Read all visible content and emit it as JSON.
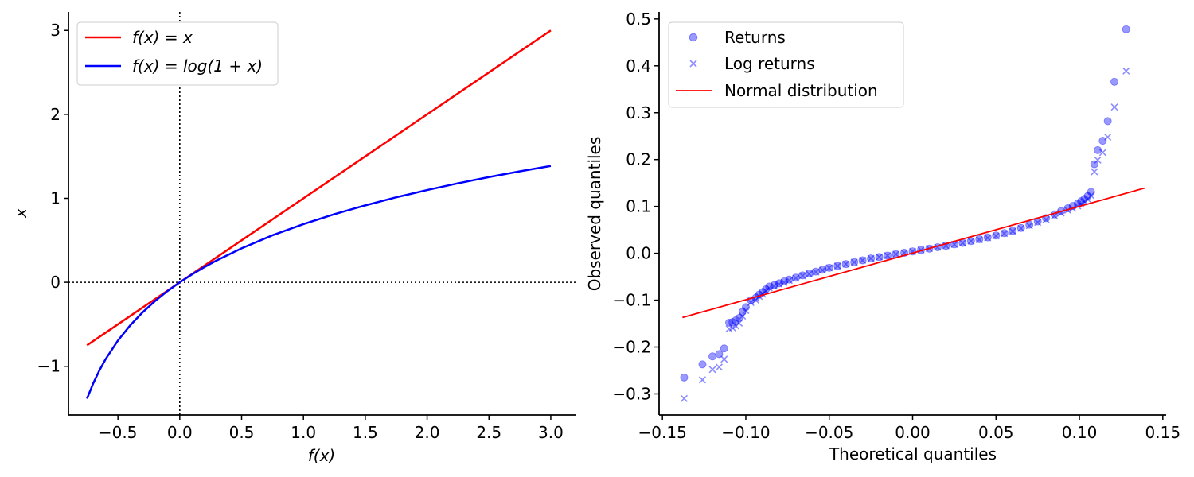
{
  "chart_data": [
    {
      "type": "line",
      "xlabel": "f(x)",
      "ylabel": "x",
      "xlim": [
        -0.9,
        3.2
      ],
      "ylim": [
        -1.58,
        3.22
      ],
      "xticks": [
        -0.5,
        0.0,
        0.5,
        1.0,
        1.5,
        2.0,
        2.5,
        3.0
      ],
      "xtick_labels": [
        "−0.5",
        "0.0",
        "0.5",
        "1.0",
        "1.5",
        "2.0",
        "2.5",
        "3.0"
      ],
      "yticks": [
        -1,
        0,
        1,
        2,
        3
      ],
      "ytick_labels": [
        "−1",
        "0",
        "1",
        "2",
        "3"
      ],
      "grid": false,
      "legend_position": "top-left",
      "reference_lines": [
        {
          "orientation": "vertical",
          "x": 0,
          "style": "dotted",
          "color": "#000000"
        },
        {
          "orientation": "horizontal",
          "y": 0,
          "style": "dotted",
          "color": "#000000"
        }
      ],
      "series": [
        {
          "name": "f(x) = x",
          "color": "#ff0000",
          "x": [
            -0.75,
            -0.5,
            0.0,
            0.5,
            1.0,
            1.5,
            2.0,
            2.5,
            3.0
          ],
          "y": [
            -0.75,
            -0.5,
            0.0,
            0.5,
            1.0,
            1.5,
            2.0,
            2.5,
            3.0
          ]
        },
        {
          "name": "f(x) = log(1 + x)",
          "color": "#0000ff",
          "x": [
            -0.75,
            -0.7,
            -0.65,
            -0.6,
            -0.5,
            -0.4,
            -0.3,
            -0.2,
            -0.1,
            0.0,
            0.1,
            0.2,
            0.3,
            0.5,
            0.75,
            1.0,
            1.25,
            1.5,
            1.75,
            2.0,
            2.25,
            2.5,
            2.75,
            3.0
          ],
          "y": [
            -1.386,
            -1.204,
            -1.05,
            -0.916,
            -0.693,
            -0.511,
            -0.357,
            -0.223,
            -0.105,
            0.0,
            0.095,
            0.182,
            0.262,
            0.405,
            0.56,
            0.693,
            0.811,
            0.916,
            1.012,
            1.099,
            1.179,
            1.253,
            1.322,
            1.386
          ]
        }
      ]
    },
    {
      "type": "scatter",
      "xlabel": "Theoretical quantiles",
      "ylabel": "Observed quantiles",
      "xlim": [
        -0.152,
        0.152
      ],
      "ylim": [
        -0.345,
        0.515
      ],
      "xticks": [
        -0.15,
        -0.1,
        -0.05,
        0.0,
        0.05,
        0.1,
        0.15
      ],
      "xtick_labels": [
        "−0.15",
        "−0.10",
        "−0.05",
        "0.00",
        "0.05",
        "0.10",
        "0.15"
      ],
      "yticks": [
        -0.3,
        -0.2,
        -0.1,
        0.0,
        0.1,
        0.2,
        0.3,
        0.4,
        0.5
      ],
      "ytick_labels": [
        "−0.3",
        "−0.2",
        "−0.1",
        "0.0",
        "0.1",
        "0.2",
        "0.3",
        "0.4",
        "0.5"
      ],
      "grid": false,
      "legend_position": "top-left",
      "series": [
        {
          "name": "Returns",
          "marker": "circle",
          "color": "#0000ff",
          "alpha": 0.4,
          "x": [
            -0.137,
            -0.126,
            -0.12,
            -0.116,
            -0.113,
            -0.11,
            -0.108,
            -0.106,
            -0.104,
            -0.102,
            -0.1,
            -0.097,
            -0.094,
            -0.092,
            -0.09,
            -0.088,
            -0.086,
            -0.083,
            -0.08,
            -0.077,
            -0.074,
            -0.07,
            -0.066,
            -0.062,
            -0.058,
            -0.054,
            -0.05,
            -0.045,
            -0.04,
            -0.035,
            -0.03,
            -0.025,
            -0.02,
            -0.015,
            -0.01,
            -0.005,
            0.0,
            0.005,
            0.01,
            0.015,
            0.02,
            0.025,
            0.03,
            0.035,
            0.04,
            0.045,
            0.05,
            0.055,
            0.06,
            0.065,
            0.07,
            0.075,
            0.08,
            0.085,
            0.089,
            0.093,
            0.096,
            0.099,
            0.101,
            0.103,
            0.105,
            0.107,
            0.109,
            0.111,
            0.114,
            0.117,
            0.121,
            0.128
          ],
          "y": [
            -0.265,
            -0.237,
            -0.22,
            -0.215,
            -0.203,
            -0.148,
            -0.147,
            -0.143,
            -0.138,
            -0.125,
            -0.115,
            -0.1,
            -0.095,
            -0.088,
            -0.083,
            -0.077,
            -0.071,
            -0.068,
            -0.064,
            -0.06,
            -0.056,
            -0.052,
            -0.047,
            -0.043,
            -0.039,
            -0.035,
            -0.031,
            -0.027,
            -0.023,
            -0.019,
            -0.015,
            -0.011,
            -0.008,
            -0.005,
            -0.002,
            0.001,
            0.004,
            0.007,
            0.01,
            0.013,
            0.016,
            0.019,
            0.022,
            0.026,
            0.03,
            0.034,
            0.038,
            0.043,
            0.048,
            0.054,
            0.061,
            0.068,
            0.075,
            0.083,
            0.09,
            0.096,
            0.101,
            0.106,
            0.111,
            0.116,
            0.122,
            0.131,
            0.19,
            0.22,
            0.24,
            0.282,
            0.366,
            0.478
          ]
        },
        {
          "name": "Log returns",
          "marker": "x",
          "color": "#0000ff",
          "alpha": 0.4,
          "x": [
            -0.137,
            -0.126,
            -0.12,
            -0.116,
            -0.113,
            -0.11,
            -0.108,
            -0.106,
            -0.104,
            -0.102,
            -0.1,
            -0.097,
            -0.094,
            -0.092,
            -0.09,
            -0.088,
            -0.086,
            -0.083,
            -0.08,
            -0.077,
            -0.074,
            -0.07,
            -0.066,
            -0.062,
            -0.058,
            -0.054,
            -0.05,
            -0.045,
            -0.04,
            -0.035,
            -0.03,
            -0.025,
            -0.02,
            -0.015,
            -0.01,
            -0.005,
            0.0,
            0.005,
            0.01,
            0.015,
            0.02,
            0.025,
            0.03,
            0.035,
            0.04,
            0.045,
            0.05,
            0.055,
            0.06,
            0.065,
            0.07,
            0.075,
            0.08,
            0.085,
            0.089,
            0.093,
            0.096,
            0.099,
            0.101,
            0.103,
            0.105,
            0.107,
            0.109,
            0.111,
            0.114,
            0.117,
            0.121,
            0.128
          ],
          "y": [
            -0.31,
            -0.27,
            -0.248,
            -0.243,
            -0.226,
            -0.161,
            -0.159,
            -0.155,
            -0.149,
            -0.134,
            -0.122,
            -0.105,
            -0.1,
            -0.092,
            -0.087,
            -0.08,
            -0.074,
            -0.07,
            -0.066,
            -0.062,
            -0.058,
            -0.053,
            -0.048,
            -0.044,
            -0.04,
            -0.036,
            -0.031,
            -0.027,
            -0.023,
            -0.019,
            -0.015,
            -0.011,
            -0.008,
            -0.005,
            -0.002,
            0.001,
            0.004,
            0.007,
            0.01,
            0.013,
            0.016,
            0.019,
            0.022,
            0.026,
            0.029,
            0.033,
            0.037,
            0.042,
            0.047,
            0.053,
            0.059,
            0.066,
            0.072,
            0.08,
            0.086,
            0.092,
            0.096,
            0.101,
            0.105,
            0.11,
            0.115,
            0.123,
            0.174,
            0.199,
            0.215,
            0.248,
            0.312,
            0.389
          ]
        },
        {
          "name": "Normal distribution",
          "marker": "line",
          "color": "#ff0000",
          "x": [
            -0.138,
            0.139
          ],
          "y": [
            -0.137,
            0.139
          ]
        }
      ]
    }
  ]
}
